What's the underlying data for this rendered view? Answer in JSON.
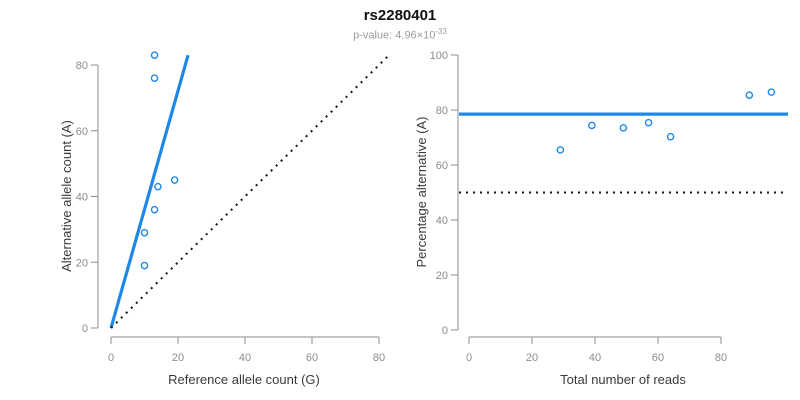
{
  "header": {
    "title": "rs2280401",
    "subtitle_base": "p-value: 4.96×10",
    "subtitle_exponent": "-33"
  },
  "colors": {
    "accent_blue": "#1f87e8",
    "line_black": "#141414",
    "axis_gray": "#8c8c8c",
    "tick_label_gray": "#8c8c8c",
    "axis_title_dark": "#3a3a3a"
  },
  "chart_data": [
    {
      "type": "scatter",
      "name": "allele-count-scatter",
      "xlabel": "Reference allele count (G)",
      "ylabel": "Alternative allele count (A)",
      "xlim": [
        0,
        80
      ],
      "ylim": [
        0,
        80
      ],
      "xticks": [
        0,
        20,
        40,
        60,
        80
      ],
      "yticks": [
        0,
        20,
        40,
        60,
        80
      ],
      "grid": false,
      "legend": null,
      "points": [
        [
          10,
          19
        ],
        [
          10,
          29
        ],
        [
          13,
          36
        ],
        [
          14,
          43
        ],
        [
          19,
          45
        ],
        [
          13,
          76
        ],
        [
          13,
          83
        ]
      ],
      "lines": [
        {
          "name": "fitted-ratio-line",
          "kind": "segment",
          "x1": 0,
          "y1": 0,
          "x2": 23,
          "y2": 83,
          "style": "solid",
          "color": "accent"
        },
        {
          "name": "identity-line",
          "kind": "segment",
          "x1": 0,
          "y1": 0,
          "x2": 83,
          "y2": 83,
          "style": "dotted",
          "color": "black"
        }
      ]
    },
    {
      "type": "scatter",
      "name": "percentage-vs-reads-scatter",
      "xlabel": "Total number of reads",
      "ylabel": "Percentage alternative (A)",
      "xlim": [
        0,
        80
      ],
      "ylim": [
        0,
        100
      ],
      "xticks": [
        0,
        20,
        40,
        60,
        80
      ],
      "yticks": [
        0,
        20,
        40,
        60,
        80,
        100
      ],
      "grid": false,
      "legend": null,
      "points": [
        [
          29,
          65.5
        ],
        [
          39,
          74.4
        ],
        [
          49,
          73.5
        ],
        [
          57,
          75.4
        ],
        [
          64,
          70.3
        ],
        [
          89,
          85.4
        ],
        [
          96,
          86.5
        ]
      ],
      "lines": [
        {
          "name": "fitted-percentage-line",
          "kind": "hline",
          "y": 78.5,
          "style": "solid",
          "color": "accent"
        },
        {
          "name": "null-50pct-line",
          "kind": "hline",
          "y": 50,
          "style": "dotted",
          "color": "black"
        }
      ]
    }
  ]
}
